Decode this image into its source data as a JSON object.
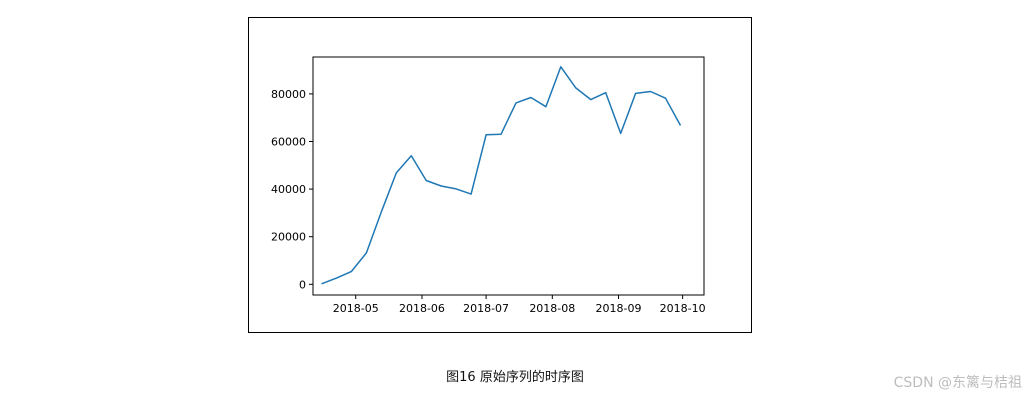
{
  "caption": "图16 原始序列的时序图",
  "watermark": "CSDN @东篱与桔祖",
  "colors": {
    "line": "#1f77b4",
    "axis": "#000000",
    "background": "#ffffff"
  },
  "chart_data": {
    "type": "line",
    "title": "",
    "xlabel": "",
    "ylabel": "",
    "grid": false,
    "x_tick_labels": [
      "2018-05",
      "2018-06",
      "2018-07",
      "2018-08",
      "2018-09",
      "2018-10"
    ],
    "y_tick_labels": [
      "0",
      "20000",
      "40000",
      "60000",
      "80000"
    ],
    "y_ticks": [
      0,
      20000,
      40000,
      60000,
      80000
    ],
    "xlim": [
      "2018-04-11",
      "2018-10-11"
    ],
    "ylim": [
      -4500,
      95500
    ],
    "series": [
      {
        "x": [
          "2018-04-15",
          "2018-04-22",
          "2018-04-29",
          "2018-05-06",
          "2018-05-13",
          "2018-05-20",
          "2018-05-27",
          "2018-06-03",
          "2018-06-10",
          "2018-06-17",
          "2018-06-24",
          "2018-07-01",
          "2018-07-08",
          "2018-07-15",
          "2018-07-22",
          "2018-07-29",
          "2018-08-05",
          "2018-08-12",
          "2018-08-19",
          "2018-08-26",
          "2018-09-02",
          "2018-09-09",
          "2018-09-16",
          "2018-09-23",
          "2018-09-30"
        ],
        "y": [
          200,
          2600,
          5400,
          13200,
          30500,
          46800,
          54000,
          43600,
          41300,
          40100,
          37900,
          62800,
          63000,
          76200,
          78500,
          74600,
          91400,
          82500,
          77600,
          80500,
          63400,
          80200,
          81000,
          78200,
          66700
        ]
      }
    ]
  }
}
